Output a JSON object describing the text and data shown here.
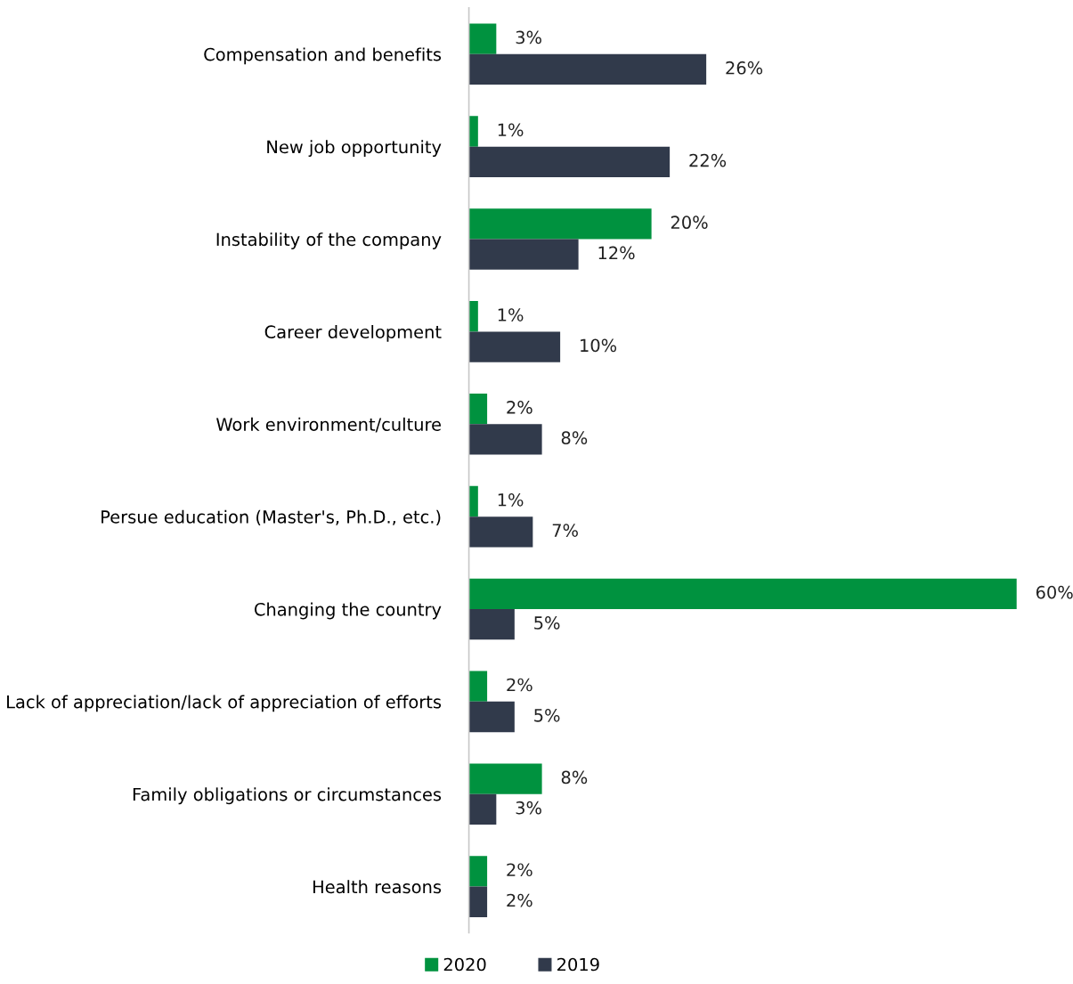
{
  "chart_data": {
    "type": "bar",
    "orientation": "horizontal",
    "categories": [
      "Compensation and benefits",
      "New job opportunity",
      "Instability of the company",
      "Career development",
      "Work environment/culture",
      "Persue education (Master's, Ph.D., etc.)",
      "Changing the country",
      "Lack of appreciation/lack of appreciation of efforts",
      "Family obligations or circumstances",
      "Health reasons"
    ],
    "series": [
      {
        "name": "2020",
        "color": "#00923f",
        "values": [
          3,
          1,
          20,
          1,
          2,
          1,
          60,
          2,
          8,
          2
        ],
        "value_labels": [
          "3%",
          "1%",
          "20%",
          "1%",
          "2%",
          "1%",
          "60%",
          "2%",
          "8%",
          "2%"
        ]
      },
      {
        "name": "2019",
        "color": "#313a4b",
        "values": [
          26,
          22,
          12,
          10,
          8,
          7,
          5,
          5,
          3,
          2
        ],
        "value_labels": [
          "26%",
          "22%",
          "12%",
          "10%",
          "8%",
          "7%",
          "5%",
          "5%",
          "3%",
          "2%"
        ]
      }
    ],
    "legend": "bottom",
    "grid": false,
    "tick_labels": "y"
  }
}
